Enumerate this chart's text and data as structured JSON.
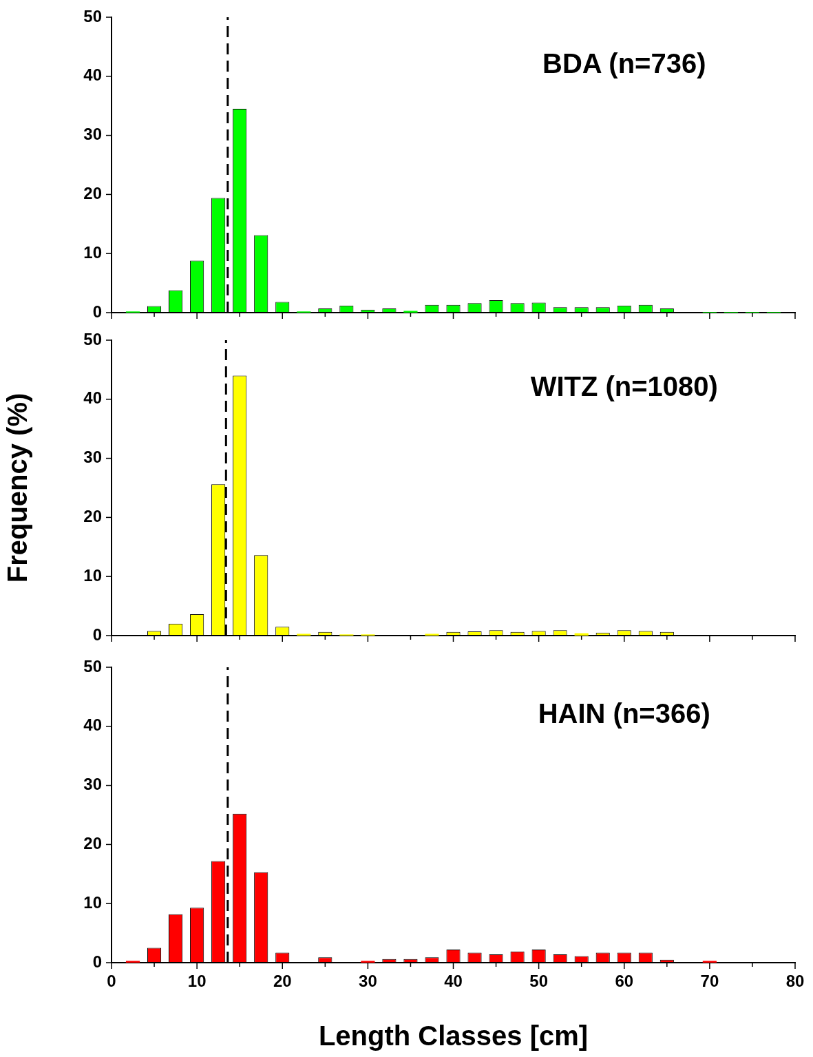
{
  "chart_data": [
    {
      "type": "bar",
      "title": "BDA (n=736)",
      "color": "#00ff00",
      "tick_labels": "y",
      "x": [
        2.5,
        5,
        7.5,
        10,
        12.5,
        15,
        17.5,
        20,
        22.5,
        25,
        27.5,
        30,
        32.5,
        35,
        37.5,
        40,
        42.5,
        45,
        47.5,
        50,
        52.5,
        55,
        57.5,
        60,
        62.5,
        65,
        67.5,
        70,
        72.5,
        75,
        77.5
      ],
      "values": [
        0.2,
        1.1,
        3.8,
        8.8,
        19.4,
        34.5,
        13.1,
        1.8,
        0.2,
        0.7,
        1.2,
        0.5,
        0.7,
        0.3,
        1.3,
        1.3,
        1.6,
        2.1,
        1.6,
        1.7,
        0.9,
        0.9,
        0.9,
        1.2,
        1.3,
        0.7,
        0,
        0.1,
        0.1,
        0.1,
        0.1
      ],
      "xlim": [
        0,
        80
      ],
      "xticks": [
        {
          "value": 0,
          "label": null
        },
        {
          "value": 5,
          "label": null
        },
        {
          "value": 10,
          "label": null
        },
        {
          "value": 15,
          "label": null
        },
        {
          "value": 20,
          "label": null
        },
        {
          "value": 25,
          "label": null
        },
        {
          "value": 30,
          "label": null
        },
        {
          "value": 35,
          "label": null
        },
        {
          "value": 40,
          "label": null
        },
        {
          "value": 45,
          "label": null
        },
        {
          "value": 50,
          "label": null
        },
        {
          "value": 55,
          "label": null
        },
        {
          "value": 60,
          "label": null
        },
        {
          "value": 65,
          "label": null
        },
        {
          "value": 70,
          "label": null
        },
        {
          "value": 75,
          "label": null
        },
        {
          "value": 80,
          "label": null
        }
      ],
      "ylim": [
        0,
        50
      ],
      "yticks": [
        0,
        10,
        20,
        30,
        40,
        50
      ],
      "ref_lines": [
        {
          "axis": "x",
          "value": 13.6,
          "line_style": "dashed",
          "color": "#000000"
        }
      ]
    },
    {
      "type": "bar",
      "title": "WITZ (n=1080)",
      "ylabel": "Frequency (%)",
      "color": "#ffff00",
      "tick_labels": "y",
      "x": [
        2.5,
        5,
        7.5,
        10,
        12.5,
        15,
        17.5,
        20,
        22.5,
        25,
        27.5,
        30,
        32.5,
        35,
        37.5,
        40,
        42.5,
        45,
        47.5,
        50,
        52.5,
        55,
        57.5,
        60,
        62.5,
        65,
        67.5,
        70,
        72.5,
        75,
        77.5
      ],
      "values": [
        0,
        0.8,
        2.0,
        3.6,
        25.6,
        44,
        13.6,
        1.5,
        0.3,
        0.6,
        0.2,
        0.2,
        0,
        0,
        0.3,
        0.6,
        0.7,
        0.9,
        0.6,
        0.8,
        0.9,
        0.4,
        0.5,
        0.9,
        0.8,
        0.6,
        0,
        0,
        0,
        0,
        0
      ],
      "xlim": [
        0,
        80
      ],
      "xticks": [
        {
          "value": 0,
          "label": null
        },
        {
          "value": 5,
          "label": null
        },
        {
          "value": 10,
          "label": null
        },
        {
          "value": 15,
          "label": null
        },
        {
          "value": 20,
          "label": null
        },
        {
          "value": 25,
          "label": null
        },
        {
          "value": 30,
          "label": null
        },
        {
          "value": 35,
          "label": null
        },
        {
          "value": 40,
          "label": null
        },
        {
          "value": 45,
          "label": null
        },
        {
          "value": 50,
          "label": null
        },
        {
          "value": 55,
          "label": null
        },
        {
          "value": 60,
          "label": null
        },
        {
          "value": 65,
          "label": null
        },
        {
          "value": 70,
          "label": null
        },
        {
          "value": 75,
          "label": null
        },
        {
          "value": 80,
          "label": null
        }
      ],
      "ylim": [
        0,
        50
      ],
      "yticks": [
        0,
        10,
        20,
        30,
        40,
        50
      ],
      "ref_lines": [
        {
          "axis": "x",
          "value": 13.4,
          "line_style": "dashed",
          "color": "#000000"
        }
      ]
    },
    {
      "type": "bar",
      "title": "HAIN (n=366)",
      "xlabel": "Length Classes [cm]",
      "color": "#ff0000",
      "x": [
        2.5,
        5,
        7.5,
        10,
        12.5,
        15,
        17.5,
        20,
        22.5,
        25,
        27.5,
        30,
        32.5,
        35,
        37.5,
        40,
        42.5,
        45,
        47.5,
        50,
        52.5,
        55,
        57.5,
        60,
        62.5,
        65,
        67.5,
        70,
        72.5,
        75,
        77.5
      ],
      "values": [
        0.3,
        2.5,
        8.2,
        9.3,
        17.2,
        25.2,
        15.3,
        1.7,
        0,
        0.9,
        0,
        0.3,
        0.6,
        0.6,
        0.9,
        2.2,
        1.7,
        1.4,
        1.9,
        2.2,
        1.4,
        1.1,
        1.7,
        1.7,
        1.7,
        0.5,
        0,
        0.3,
        0,
        0,
        0
      ],
      "xlim": [
        0,
        80
      ],
      "xticks": [
        0,
        {
          "value": 5,
          "label": null
        },
        10,
        {
          "value": 15,
          "label": null
        },
        20,
        {
          "value": 25,
          "label": null
        },
        30,
        {
          "value": 35,
          "label": null
        },
        40,
        {
          "value": 45,
          "label": null
        },
        50,
        {
          "value": 55,
          "label": null
        },
        60,
        {
          "value": 65,
          "label": null
        },
        70,
        {
          "value": 75,
          "label": null
        },
        80
      ],
      "ylim": [
        0,
        50
      ],
      "yticks": [
        0,
        10,
        20,
        30,
        40,
        50
      ],
      "ref_lines": [
        {
          "axis": "x",
          "value": 13.6,
          "line_style": "dashed",
          "color": "#000000"
        }
      ]
    }
  ]
}
